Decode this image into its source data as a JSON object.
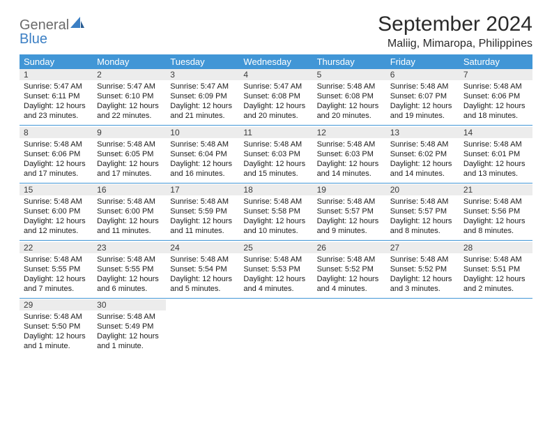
{
  "brand": {
    "word1": "General",
    "word2": "Blue"
  },
  "title": {
    "month": "September 2024",
    "location": "Maliig, Mimaropa, Philippines"
  },
  "colors": {
    "header_bg": "#4196d6",
    "header_fg": "#ffffff",
    "daynum_bg": "#ececec",
    "accent": "#3b7fc4"
  },
  "weekdays": [
    "Sunday",
    "Monday",
    "Tuesday",
    "Wednesday",
    "Thursday",
    "Friday",
    "Saturday"
  ],
  "weeks": [
    [
      {
        "n": "1",
        "sr": "Sunrise: 5:47 AM",
        "ss": "Sunset: 6:11 PM",
        "d1": "Daylight: 12 hours",
        "d2": "and 23 minutes."
      },
      {
        "n": "2",
        "sr": "Sunrise: 5:47 AM",
        "ss": "Sunset: 6:10 PM",
        "d1": "Daylight: 12 hours",
        "d2": "and 22 minutes."
      },
      {
        "n": "3",
        "sr": "Sunrise: 5:47 AM",
        "ss": "Sunset: 6:09 PM",
        "d1": "Daylight: 12 hours",
        "d2": "and 21 minutes."
      },
      {
        "n": "4",
        "sr": "Sunrise: 5:47 AM",
        "ss": "Sunset: 6:08 PM",
        "d1": "Daylight: 12 hours",
        "d2": "and 20 minutes."
      },
      {
        "n": "5",
        "sr": "Sunrise: 5:48 AM",
        "ss": "Sunset: 6:08 PM",
        "d1": "Daylight: 12 hours",
        "d2": "and 20 minutes."
      },
      {
        "n": "6",
        "sr": "Sunrise: 5:48 AM",
        "ss": "Sunset: 6:07 PM",
        "d1": "Daylight: 12 hours",
        "d2": "and 19 minutes."
      },
      {
        "n": "7",
        "sr": "Sunrise: 5:48 AM",
        "ss": "Sunset: 6:06 PM",
        "d1": "Daylight: 12 hours",
        "d2": "and 18 minutes."
      }
    ],
    [
      {
        "n": "8",
        "sr": "Sunrise: 5:48 AM",
        "ss": "Sunset: 6:06 PM",
        "d1": "Daylight: 12 hours",
        "d2": "and 17 minutes."
      },
      {
        "n": "9",
        "sr": "Sunrise: 5:48 AM",
        "ss": "Sunset: 6:05 PM",
        "d1": "Daylight: 12 hours",
        "d2": "and 17 minutes."
      },
      {
        "n": "10",
        "sr": "Sunrise: 5:48 AM",
        "ss": "Sunset: 6:04 PM",
        "d1": "Daylight: 12 hours",
        "d2": "and 16 minutes."
      },
      {
        "n": "11",
        "sr": "Sunrise: 5:48 AM",
        "ss": "Sunset: 6:03 PM",
        "d1": "Daylight: 12 hours",
        "d2": "and 15 minutes."
      },
      {
        "n": "12",
        "sr": "Sunrise: 5:48 AM",
        "ss": "Sunset: 6:03 PM",
        "d1": "Daylight: 12 hours",
        "d2": "and 14 minutes."
      },
      {
        "n": "13",
        "sr": "Sunrise: 5:48 AM",
        "ss": "Sunset: 6:02 PM",
        "d1": "Daylight: 12 hours",
        "d2": "and 14 minutes."
      },
      {
        "n": "14",
        "sr": "Sunrise: 5:48 AM",
        "ss": "Sunset: 6:01 PM",
        "d1": "Daylight: 12 hours",
        "d2": "and 13 minutes."
      }
    ],
    [
      {
        "n": "15",
        "sr": "Sunrise: 5:48 AM",
        "ss": "Sunset: 6:00 PM",
        "d1": "Daylight: 12 hours",
        "d2": "and 12 minutes."
      },
      {
        "n": "16",
        "sr": "Sunrise: 5:48 AM",
        "ss": "Sunset: 6:00 PM",
        "d1": "Daylight: 12 hours",
        "d2": "and 11 minutes."
      },
      {
        "n": "17",
        "sr": "Sunrise: 5:48 AM",
        "ss": "Sunset: 5:59 PM",
        "d1": "Daylight: 12 hours",
        "d2": "and 11 minutes."
      },
      {
        "n": "18",
        "sr": "Sunrise: 5:48 AM",
        "ss": "Sunset: 5:58 PM",
        "d1": "Daylight: 12 hours",
        "d2": "and 10 minutes."
      },
      {
        "n": "19",
        "sr": "Sunrise: 5:48 AM",
        "ss": "Sunset: 5:57 PM",
        "d1": "Daylight: 12 hours",
        "d2": "and 9 minutes."
      },
      {
        "n": "20",
        "sr": "Sunrise: 5:48 AM",
        "ss": "Sunset: 5:57 PM",
        "d1": "Daylight: 12 hours",
        "d2": "and 8 minutes."
      },
      {
        "n": "21",
        "sr": "Sunrise: 5:48 AM",
        "ss": "Sunset: 5:56 PM",
        "d1": "Daylight: 12 hours",
        "d2": "and 8 minutes."
      }
    ],
    [
      {
        "n": "22",
        "sr": "Sunrise: 5:48 AM",
        "ss": "Sunset: 5:55 PM",
        "d1": "Daylight: 12 hours",
        "d2": "and 7 minutes."
      },
      {
        "n": "23",
        "sr": "Sunrise: 5:48 AM",
        "ss": "Sunset: 5:55 PM",
        "d1": "Daylight: 12 hours",
        "d2": "and 6 minutes."
      },
      {
        "n": "24",
        "sr": "Sunrise: 5:48 AM",
        "ss": "Sunset: 5:54 PM",
        "d1": "Daylight: 12 hours",
        "d2": "and 5 minutes."
      },
      {
        "n": "25",
        "sr": "Sunrise: 5:48 AM",
        "ss": "Sunset: 5:53 PM",
        "d1": "Daylight: 12 hours",
        "d2": "and 4 minutes."
      },
      {
        "n": "26",
        "sr": "Sunrise: 5:48 AM",
        "ss": "Sunset: 5:52 PM",
        "d1": "Daylight: 12 hours",
        "d2": "and 4 minutes."
      },
      {
        "n": "27",
        "sr": "Sunrise: 5:48 AM",
        "ss": "Sunset: 5:52 PM",
        "d1": "Daylight: 12 hours",
        "d2": "and 3 minutes."
      },
      {
        "n": "28",
        "sr": "Sunrise: 5:48 AM",
        "ss": "Sunset: 5:51 PM",
        "d1": "Daylight: 12 hours",
        "d2": "and 2 minutes."
      }
    ],
    [
      {
        "n": "29",
        "sr": "Sunrise: 5:48 AM",
        "ss": "Sunset: 5:50 PM",
        "d1": "Daylight: 12 hours",
        "d2": "and 1 minute."
      },
      {
        "n": "30",
        "sr": "Sunrise: 5:48 AM",
        "ss": "Sunset: 5:49 PM",
        "d1": "Daylight: 12 hours",
        "d2": "and 1 minute."
      },
      {
        "empty": true
      },
      {
        "empty": true
      },
      {
        "empty": true
      },
      {
        "empty": true
      },
      {
        "empty": true
      }
    ]
  ]
}
